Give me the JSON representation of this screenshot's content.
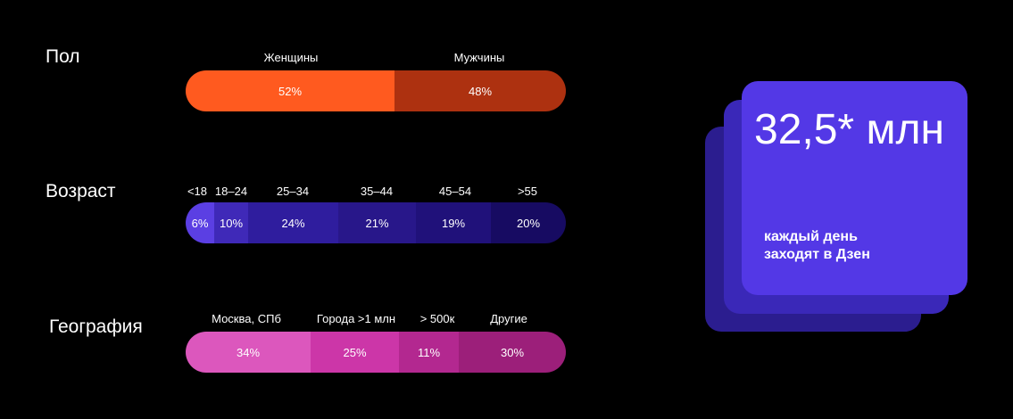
{
  "gender": {
    "title": "Пол",
    "segments": [
      {
        "label": "Женщины",
        "value": "52%",
        "share": 52,
        "color": "#ff5a1f"
      },
      {
        "label": "Мужчины",
        "value": "48%",
        "share": 48,
        "color": "#ad3110"
      }
    ]
  },
  "age": {
    "title": "Возраст",
    "segments": [
      {
        "label": "<18",
        "value": "6%",
        "share": 6,
        "color": "#5b3fe3"
      },
      {
        "label": "18–24",
        "value": "10%",
        "share": 10,
        "color": "#3f29b8"
      },
      {
        "label": "25–34",
        "value": "24%",
        "share": 24,
        "color": "#2f1d9e"
      },
      {
        "label": "35–44",
        "value": "21%",
        "share": 21,
        "color": "#28178a"
      },
      {
        "label": "45–54",
        "value": "19%",
        "share": 19,
        "color": "#20117a"
      },
      {
        "label": ">55",
        "value": "20%",
        "share": 20,
        "color": "#170b62"
      }
    ]
  },
  "geo": {
    "title": "География",
    "segments": [
      {
        "label": "Москва, СПб",
        "value": "34%",
        "share": 34,
        "color": "#dc57bd"
      },
      {
        "label": "Города >1 млн",
        "value": "25%",
        "share": 25,
        "color": "#cc36a8"
      },
      {
        "label": "> 500к",
        "value": "11%",
        "share": 11,
        "color": "#b32890"
      },
      {
        "label": "Другие",
        "value": "30%",
        "share": 30,
        "color": "#9c1f7a"
      }
    ]
  },
  "card": {
    "number": "32,5* млн",
    "caption_line1": "каждый день",
    "caption_line2": "заходят в Дзен"
  }
}
